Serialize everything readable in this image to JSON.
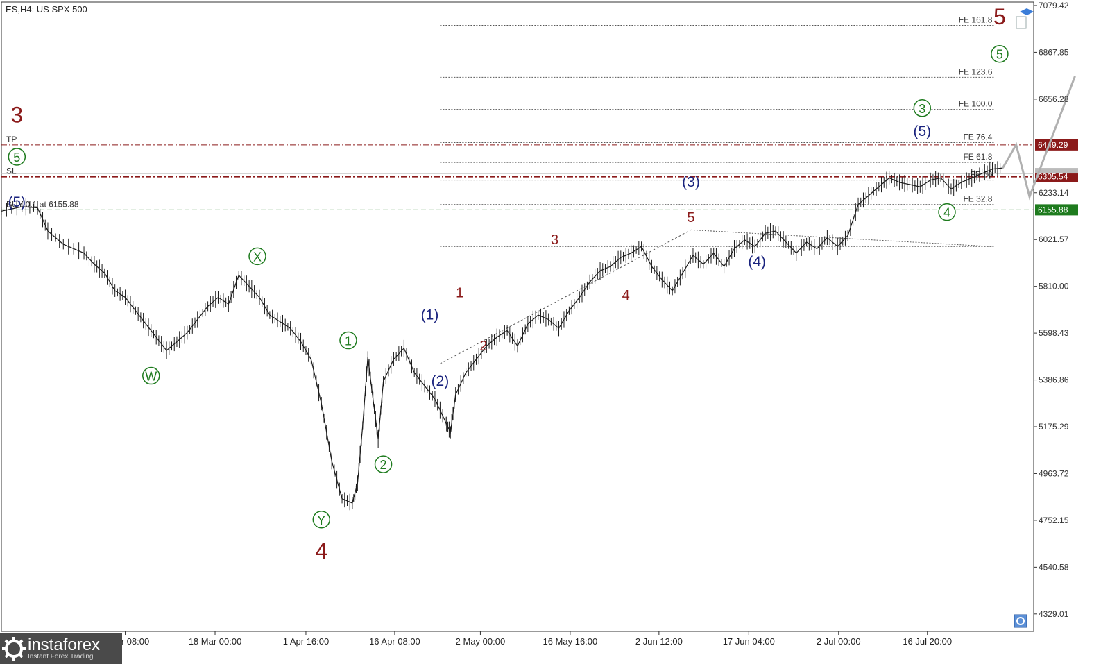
{
  "symbol_label": "ES,H4:  US SPX 500",
  "chart_data": {
    "type": "line",
    "title": "ES,H4:  US SPX 500",
    "ylim": [
      4250,
      7095
    ],
    "y_ticks": [
      "7079.42",
      "6867.85",
      "6656.28",
      "6233.14",
      "6021.57",
      "5810.00",
      "5598.43",
      "5386.86",
      "5175.29",
      "4963.72",
      "4752.15",
      "4540.58",
      "4329.01"
    ],
    "x_ticks": [
      "4 Mar 08:00",
      "18 Mar 00:00",
      "1 Apr 16:00",
      "16 Apr 08:00",
      "2 May 00:00",
      "16 May 16:00",
      "2 Jun 12:00",
      "17 Jun 04:00",
      "2 Jul 00:00",
      "16 Jul 20:00"
    ],
    "x_range": [
      0,
      100
    ],
    "price_series": [
      [
        0,
        6150
      ],
      [
        2,
        6170
      ],
      [
        3.5,
        6165
      ],
      [
        4.5,
        6060
      ],
      [
        6,
        6000
      ],
      [
        8,
        5960
      ],
      [
        9,
        5910
      ],
      [
        10,
        5870
      ],
      [
        11,
        5790
      ],
      [
        12,
        5760
      ],
      [
        13,
        5700
      ],
      [
        14,
        5640
      ],
      [
        15,
        5580
      ],
      [
        16,
        5520
      ],
      [
        17,
        5560
      ],
      [
        18,
        5600
      ],
      [
        19,
        5660
      ],
      [
        20,
        5720
      ],
      [
        21,
        5760
      ],
      [
        22,
        5730
      ],
      [
        23,
        5860
      ],
      [
        24,
        5810
      ],
      [
        25,
        5760
      ],
      [
        26,
        5680
      ],
      [
        27,
        5650
      ],
      [
        28,
        5620
      ],
      [
        29,
        5560
      ],
      [
        30,
        5480
      ],
      [
        31,
        5280
      ],
      [
        32,
        5020
      ],
      [
        33,
        4850
      ],
      [
        34,
        4830
      ],
      [
        34.5,
        4920
      ],
      [
        35,
        5180
      ],
      [
        35.5,
        5490
      ],
      [
        36,
        5300
      ],
      [
        36.5,
        5120
      ],
      [
        37,
        5380
      ],
      [
        38,
        5480
      ],
      [
        39,
        5530
      ],
      [
        40,
        5420
      ],
      [
        41,
        5360
      ],
      [
        42,
        5300
      ],
      [
        43,
        5200
      ],
      [
        43.5,
        5150
      ],
      [
        44,
        5320
      ],
      [
        45,
        5420
      ],
      [
        46,
        5480
      ],
      [
        47,
        5540
      ],
      [
        48,
        5580
      ],
      [
        49,
        5610
      ],
      [
        50,
        5540
      ],
      [
        51,
        5640
      ],
      [
        52,
        5680
      ],
      [
        53,
        5660
      ],
      [
        54,
        5620
      ],
      [
        55,
        5700
      ],
      [
        56,
        5760
      ],
      [
        57,
        5830
      ],
      [
        58,
        5880
      ],
      [
        59,
        5900
      ],
      [
        60,
        5940
      ],
      [
        61,
        5960
      ],
      [
        62,
        5990
      ],
      [
        63,
        5900
      ],
      [
        64,
        5840
      ],
      [
        65,
        5790
      ],
      [
        66,
        5870
      ],
      [
        67,
        5950
      ],
      [
        68,
        5910
      ],
      [
        69,
        5960
      ],
      [
        70,
        5900
      ],
      [
        71,
        5980
      ],
      [
        72,
        6020
      ],
      [
        73,
        5990
      ],
      [
        74,
        6050
      ],
      [
        75,
        6060
      ],
      [
        76,
        6010
      ],
      [
        77,
        5960
      ],
      [
        78,
        6010
      ],
      [
        79,
        5980
      ],
      [
        80,
        6030
      ],
      [
        81,
        5990
      ],
      [
        82,
        6040
      ],
      [
        83,
        6180
      ],
      [
        84,
        6220
      ],
      [
        85,
        6260
      ],
      [
        86,
        6300
      ],
      [
        87,
        6280
      ],
      [
        88,
        6270
      ],
      [
        89,
        6260
      ],
      [
        90,
        6290
      ],
      [
        91,
        6300
      ],
      [
        92,
        6250
      ],
      [
        93,
        6280
      ],
      [
        94,
        6300
      ],
      [
        95,
        6320
      ],
      [
        96,
        6340
      ],
      [
        97,
        6345
      ]
    ],
    "projection": [
      [
        97,
        6345
      ],
      [
        98.3,
        6450
      ],
      [
        99.6,
        6215
      ],
      [
        104,
        6760
      ]
    ],
    "levels": {
      "tp": {
        "label": "TP",
        "value": "6449.29",
        "color": "#8b1a1a"
      },
      "sl": {
        "label": "SL",
        "value": "6305.54",
        "color": "#8b1a1a"
      },
      "buy": {
        "label": "BUY 0.1 at 6155.88",
        "value": "6155.88",
        "color": "#1e7b1e"
      },
      "current_price": 6320
    },
    "fe_levels": [
      {
        "label": "FE 161.8",
        "value": 6990
      },
      {
        "label": "FE 123.6",
        "value": 6755
      },
      {
        "label": "FE 100.0",
        "value": 6610
      },
      {
        "label": "FE 76.4",
        "value": 6460
      },
      {
        "label": "FE 61.8",
        "value": 6370
      },
      {
        "label": "FE 50",
        "value": 6290
      },
      {
        "label": "FE 32.8",
        "value": 6180
      },
      {
        "label": "",
        "value": 5990
      }
    ],
    "wave_labels": [
      {
        "text": "3",
        "x": 1.5,
        "y": 6550,
        "style": "big"
      },
      {
        "text": "(5)",
        "x": 1.5,
        "y": 6170,
        "style": "blue"
      },
      {
        "text": "5",
        "x": 1.5,
        "y": 6380,
        "style": "circled-green"
      },
      {
        "text": "W",
        "x": 14.5,
        "y": 5390,
        "style": "circled-green"
      },
      {
        "text": "X",
        "x": 24.8,
        "y": 5930,
        "style": "circled-green"
      },
      {
        "text": "Y",
        "x": 31,
        "y": 4740,
        "style": "circled-green"
      },
      {
        "text": "4",
        "x": 31,
        "y": 4580,
        "style": "big"
      },
      {
        "text": "1",
        "x": 33.6,
        "y": 5550,
        "style": "circled-green"
      },
      {
        "text": "2",
        "x": 37,
        "y": 4990,
        "style": "circled-green"
      },
      {
        "text": "(1)",
        "x": 41.5,
        "y": 5660,
        "style": "blue"
      },
      {
        "text": "(2)",
        "x": 42.5,
        "y": 5360,
        "style": "blue"
      },
      {
        "text": "1",
        "x": 44.4,
        "y": 5760,
        "style": "red"
      },
      {
        "text": "2",
        "x": 46.7,
        "y": 5520,
        "style": "red"
      },
      {
        "text": "3",
        "x": 53.6,
        "y": 6000,
        "style": "red"
      },
      {
        "text": "4",
        "x": 60.5,
        "y": 5750,
        "style": "red"
      },
      {
        "text": "(3)",
        "x": 66.8,
        "y": 6260,
        "style": "blue"
      },
      {
        "text": "5",
        "x": 66.8,
        "y": 6100,
        "style": "red"
      },
      {
        "text": "(4)",
        "x": 73.2,
        "y": 5900,
        "style": "blue"
      },
      {
        "text": "(5)",
        "x": 89.2,
        "y": 6490,
        "style": "blue"
      },
      {
        "text": "3",
        "x": 89.2,
        "y": 6600,
        "style": "circled-green"
      },
      {
        "text": "4",
        "x": 91.6,
        "y": 6130,
        "style": "circled-green"
      },
      {
        "text": "5",
        "x": 96.7,
        "y": 6845,
        "style": "circled-green"
      },
      {
        "text": "5",
        "x": 96.7,
        "y": 6995,
        "style": "big"
      }
    ]
  },
  "logo": {
    "name": "instaforex",
    "tagline": "Instant Forex Trading"
  },
  "colors": {
    "price": "#1a1a1a",
    "projection": "#b0b0b0",
    "tp_sl": "#8b1a1a",
    "buy": "#1e7b1e",
    "wave_green": "#1e7b1e",
    "wave_blue": "#1a237e",
    "wave_red": "#8b1a1a"
  }
}
